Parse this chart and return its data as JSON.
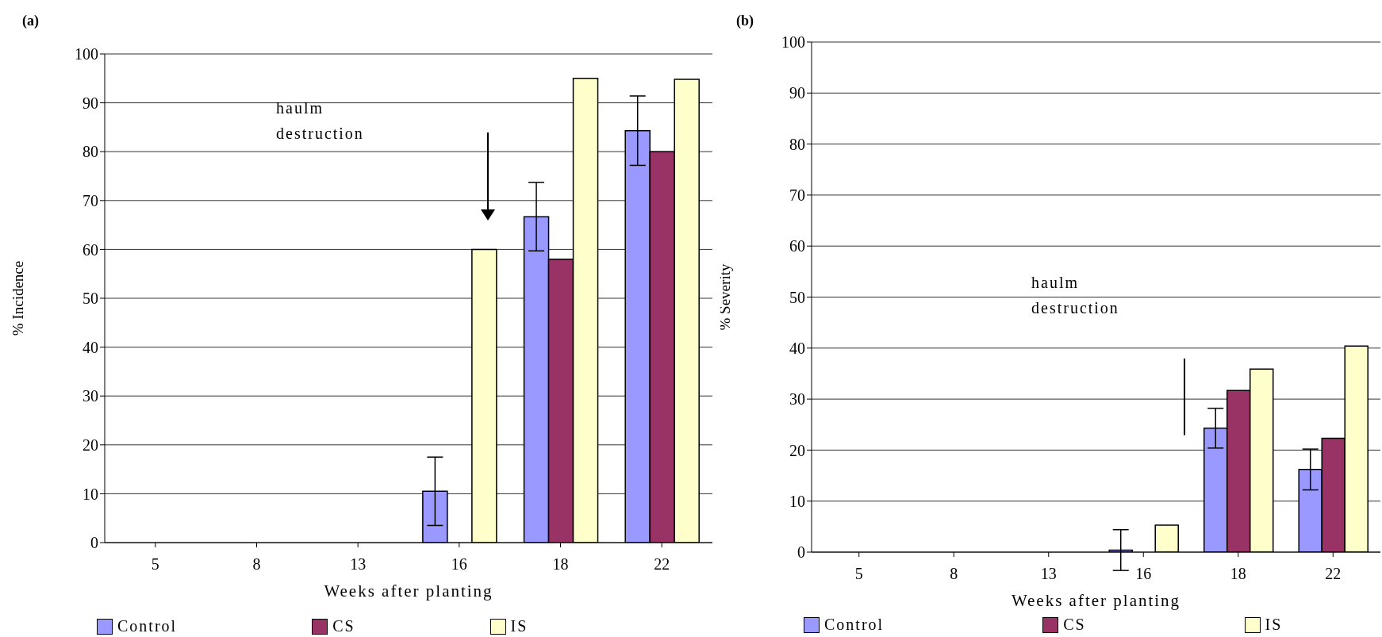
{
  "chart_data": [
    {
      "type": "bar",
      "title": "(a)",
      "xlabel": "Weeks after planting",
      "ylabel": "% Incidence",
      "categories": [
        "5",
        "8",
        "13",
        "16",
        "18",
        "22"
      ],
      "series": [
        {
          "name": "Control",
          "color": "#9999ff",
          "values": [
            0,
            0,
            0,
            10.5,
            66.7,
            84.3
          ],
          "errors": [
            null,
            null,
            null,
            7,
            7,
            7.1
          ]
        },
        {
          "name": "CS",
          "color": "#993366",
          "values": [
            0,
            0,
            0,
            0,
            58,
            80
          ]
        },
        {
          "name": "IS",
          "color": "#ffffcc",
          "values": [
            0,
            0,
            0,
            60,
            95,
            94.8
          ]
        }
      ],
      "ylim": [
        0,
        100
      ],
      "yticks": [
        0,
        10,
        20,
        30,
        40,
        50,
        60,
        70,
        80,
        90,
        100
      ],
      "grid": "y",
      "legend": "bottom",
      "annotations": [
        "haulm destruction"
      ]
    },
    {
      "type": "bar",
      "title": "(b)",
      "xlabel": "Weeks after planting",
      "ylabel": "% Severity",
      "categories": [
        "5",
        "8",
        "13",
        "16",
        "18",
        "22"
      ],
      "series": [
        {
          "name": "Control",
          "color": "#9999ff",
          "values": [
            0,
            0,
            0,
            0.4,
            24.3,
            16.2
          ],
          "errors": [
            null,
            null,
            null,
            4,
            3.9,
            4
          ]
        },
        {
          "name": "CS",
          "color": "#993366",
          "values": [
            0,
            0,
            0,
            0,
            31.7,
            22.3
          ]
        },
        {
          "name": "IS",
          "color": "#ffffcc",
          "values": [
            0,
            0,
            0,
            5.3,
            35.9,
            40.4
          ]
        }
      ],
      "ylim": [
        0,
        100
      ],
      "yticks": [
        0,
        10,
        20,
        30,
        40,
        50,
        60,
        70,
        80,
        90,
        100
      ],
      "grid": "y",
      "legend": "bottom",
      "annotations": [
        "haulm destruction"
      ]
    }
  ]
}
